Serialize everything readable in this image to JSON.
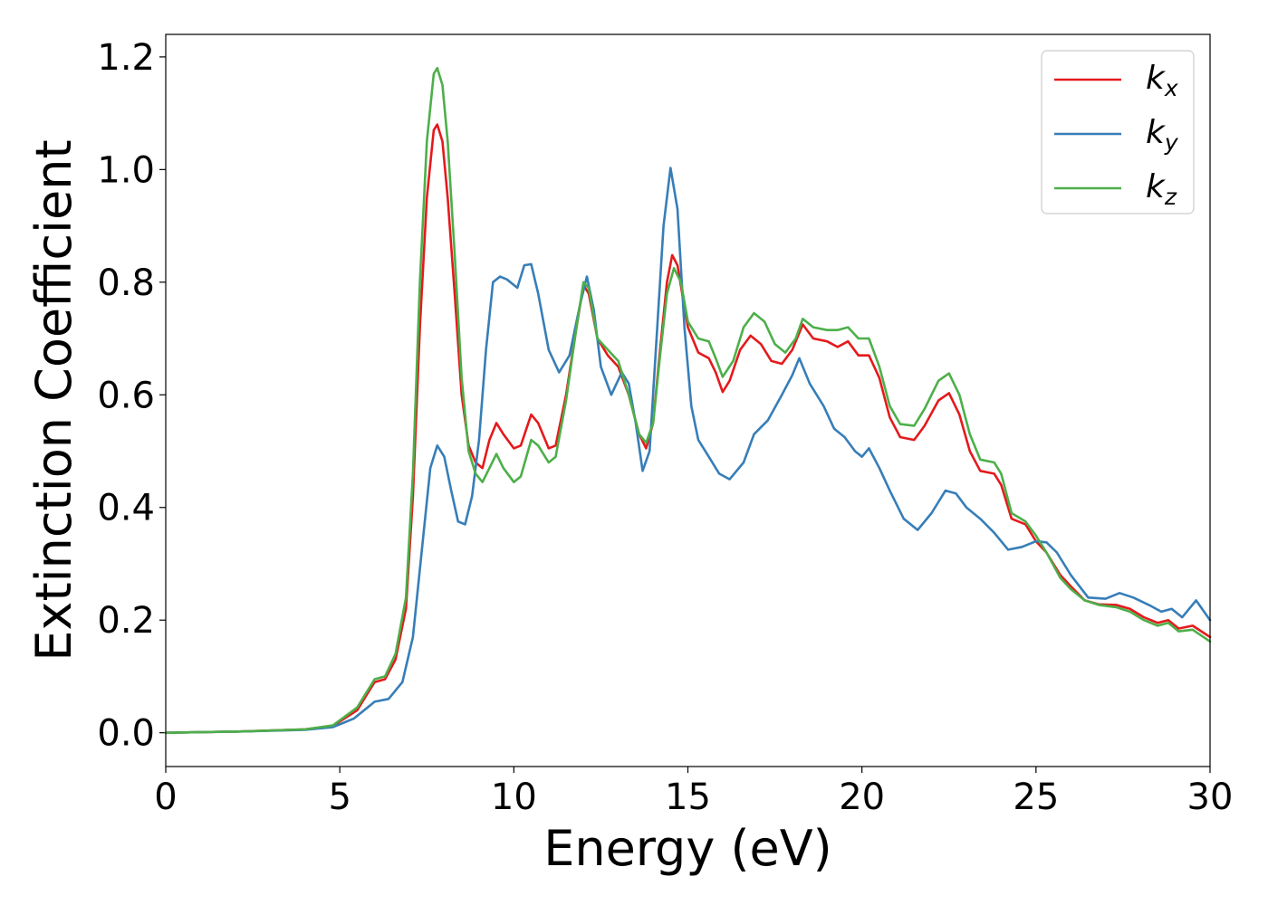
{
  "chart_data": {
    "type": "line",
    "xlabel": "Energy (eV)",
    "ylabel": "Extinction Coefficient",
    "xlim": [
      0,
      30
    ],
    "ylim": [
      -0.06,
      1.24
    ],
    "xticks": [
      0,
      5,
      10,
      15,
      20,
      25,
      30
    ],
    "yticks": [
      0.0,
      0.2,
      0.4,
      0.6,
      0.8,
      1.0,
      1.2
    ],
    "xtick_labels": [
      "0",
      "5",
      "10",
      "15",
      "20",
      "25",
      "30"
    ],
    "ytick_labels": [
      "0.0",
      "0.2",
      "0.4",
      "0.6",
      "0.8",
      "1.0",
      "1.2"
    ],
    "grid": false,
    "legend_position": "top-right",
    "series": [
      {
        "name": "kx",
        "base": "k",
        "sub": "x",
        "color": "#e41a1c",
        "points": [
          [
            0,
            0
          ],
          [
            2,
            0.002
          ],
          [
            4,
            0.006
          ],
          [
            4.8,
            0.012
          ],
          [
            5.5,
            0.04
          ],
          [
            5.8,
            0.07
          ],
          [
            6,
            0.09
          ],
          [
            6.3,
            0.095
          ],
          [
            6.6,
            0.13
          ],
          [
            6.9,
            0.22
          ],
          [
            7.1,
            0.42
          ],
          [
            7.3,
            0.72
          ],
          [
            7.5,
            0.95
          ],
          [
            7.7,
            1.07
          ],
          [
            7.8,
            1.08
          ],
          [
            7.95,
            1.05
          ],
          [
            8.1,
            0.95
          ],
          [
            8.3,
            0.78
          ],
          [
            8.5,
            0.6
          ],
          [
            8.7,
            0.51
          ],
          [
            8.9,
            0.48
          ],
          [
            9.1,
            0.47
          ],
          [
            9.3,
            0.52
          ],
          [
            9.5,
            0.55
          ],
          [
            9.7,
            0.53
          ],
          [
            10,
            0.505
          ],
          [
            10.2,
            0.51
          ],
          [
            10.5,
            0.565
          ],
          [
            10.7,
            0.55
          ],
          [
            11,
            0.505
          ],
          [
            11.2,
            0.51
          ],
          [
            11.5,
            0.6
          ],
          [
            11.8,
            0.72
          ],
          [
            12,
            0.795
          ],
          [
            12.15,
            0.78
          ],
          [
            12.4,
            0.7
          ],
          [
            12.7,
            0.67
          ],
          [
            13,
            0.65
          ],
          [
            13.3,
            0.6
          ],
          [
            13.6,
            0.53
          ],
          [
            13.8,
            0.505
          ],
          [
            14,
            0.55
          ],
          [
            14.2,
            0.68
          ],
          [
            14.4,
            0.8
          ],
          [
            14.55,
            0.848
          ],
          [
            14.7,
            0.83
          ],
          [
            15,
            0.72
          ],
          [
            15.3,
            0.675
          ],
          [
            15.6,
            0.665
          ],
          [
            15.8,
            0.64
          ],
          [
            16,
            0.605
          ],
          [
            16.2,
            0.625
          ],
          [
            16.5,
            0.68
          ],
          [
            16.8,
            0.705
          ],
          [
            17.1,
            0.69
          ],
          [
            17.4,
            0.66
          ],
          [
            17.7,
            0.655
          ],
          [
            18,
            0.68
          ],
          [
            18.3,
            0.725
          ],
          [
            18.6,
            0.7
          ],
          [
            19,
            0.695
          ],
          [
            19.3,
            0.685
          ],
          [
            19.6,
            0.695
          ],
          [
            19.9,
            0.67
          ],
          [
            20.2,
            0.67
          ],
          [
            20.5,
            0.63
          ],
          [
            20.8,
            0.56
          ],
          [
            21.1,
            0.525
          ],
          [
            21.5,
            0.52
          ],
          [
            21.8,
            0.545
          ],
          [
            22.2,
            0.59
          ],
          [
            22.5,
            0.603
          ],
          [
            22.8,
            0.565
          ],
          [
            23.1,
            0.5
          ],
          [
            23.4,
            0.465
          ],
          [
            23.8,
            0.46
          ],
          [
            24,
            0.44
          ],
          [
            24.3,
            0.38
          ],
          [
            24.7,
            0.37
          ],
          [
            25,
            0.34
          ],
          [
            25.3,
            0.32
          ],
          [
            25.7,
            0.28
          ],
          [
            26,
            0.26
          ],
          [
            26.4,
            0.235
          ],
          [
            26.8,
            0.228
          ],
          [
            27.3,
            0.227
          ],
          [
            27.7,
            0.22
          ],
          [
            28.1,
            0.205
          ],
          [
            28.5,
            0.195
          ],
          [
            28.8,
            0.2
          ],
          [
            29.1,
            0.185
          ],
          [
            29.5,
            0.19
          ],
          [
            30,
            0.17
          ]
        ]
      },
      {
        "name": "ky",
        "base": "k",
        "sub": "y",
        "color": "#377eb8",
        "points": [
          [
            0,
            0
          ],
          [
            2,
            0.002
          ],
          [
            4,
            0.005
          ],
          [
            4.8,
            0.01
          ],
          [
            5.4,
            0.025
          ],
          [
            5.8,
            0.045
          ],
          [
            6,
            0.055
          ],
          [
            6.4,
            0.06
          ],
          [
            6.8,
            0.09
          ],
          [
            7.1,
            0.17
          ],
          [
            7.4,
            0.35
          ],
          [
            7.6,
            0.47
          ],
          [
            7.8,
            0.51
          ],
          [
            8,
            0.49
          ],
          [
            8.2,
            0.43
          ],
          [
            8.4,
            0.375
          ],
          [
            8.6,
            0.37
          ],
          [
            8.8,
            0.42
          ],
          [
            9,
            0.52
          ],
          [
            9.2,
            0.68
          ],
          [
            9.4,
            0.8
          ],
          [
            9.6,
            0.81
          ],
          [
            9.8,
            0.805
          ],
          [
            10.1,
            0.79
          ],
          [
            10.3,
            0.83
          ],
          [
            10.5,
            0.832
          ],
          [
            10.7,
            0.78
          ],
          [
            11,
            0.68
          ],
          [
            11.3,
            0.64
          ],
          [
            11.6,
            0.67
          ],
          [
            11.9,
            0.76
          ],
          [
            12.1,
            0.81
          ],
          [
            12.3,
            0.75
          ],
          [
            12.5,
            0.65
          ],
          [
            12.8,
            0.6
          ],
          [
            13.1,
            0.64
          ],
          [
            13.3,
            0.62
          ],
          [
            13.5,
            0.55
          ],
          [
            13.7,
            0.465
          ],
          [
            13.9,
            0.5
          ],
          [
            14.1,
            0.7
          ],
          [
            14.3,
            0.9
          ],
          [
            14.5,
            1.003
          ],
          [
            14.7,
            0.93
          ],
          [
            14.9,
            0.72
          ],
          [
            15.1,
            0.58
          ],
          [
            15.3,
            0.52
          ],
          [
            15.6,
            0.49
          ],
          [
            15.9,
            0.46
          ],
          [
            16.2,
            0.45
          ],
          [
            16.6,
            0.48
          ],
          [
            16.9,
            0.53
          ],
          [
            17.3,
            0.555
          ],
          [
            17.7,
            0.6
          ],
          [
            18,
            0.635
          ],
          [
            18.2,
            0.665
          ],
          [
            18.5,
            0.62
          ],
          [
            18.9,
            0.58
          ],
          [
            19.2,
            0.54
          ],
          [
            19.5,
            0.525
          ],
          [
            19.8,
            0.5
          ],
          [
            20,
            0.49
          ],
          [
            20.2,
            0.505
          ],
          [
            20.5,
            0.47
          ],
          [
            20.8,
            0.43
          ],
          [
            21.2,
            0.38
          ],
          [
            21.6,
            0.36
          ],
          [
            22,
            0.39
          ],
          [
            22.4,
            0.43
          ],
          [
            22.7,
            0.425
          ],
          [
            23,
            0.4
          ],
          [
            23.4,
            0.38
          ],
          [
            23.8,
            0.355
          ],
          [
            24.2,
            0.325
          ],
          [
            24.6,
            0.33
          ],
          [
            25,
            0.34
          ],
          [
            25.3,
            0.338
          ],
          [
            25.6,
            0.32
          ],
          [
            26,
            0.28
          ],
          [
            26.5,
            0.24
          ],
          [
            27,
            0.238
          ],
          [
            27.4,
            0.248
          ],
          [
            27.8,
            0.24
          ],
          [
            28.3,
            0.225
          ],
          [
            28.6,
            0.215
          ],
          [
            28.9,
            0.22
          ],
          [
            29.2,
            0.205
          ],
          [
            29.6,
            0.235
          ],
          [
            30,
            0.2
          ]
        ]
      },
      {
        "name": "kz",
        "base": "k",
        "sub": "z",
        "color": "#4daf4a",
        "points": [
          [
            0,
            0
          ],
          [
            2,
            0.002
          ],
          [
            4,
            0.006
          ],
          [
            4.8,
            0.013
          ],
          [
            5.5,
            0.045
          ],
          [
            5.8,
            0.075
          ],
          [
            6,
            0.095
          ],
          [
            6.3,
            0.1
          ],
          [
            6.6,
            0.14
          ],
          [
            6.9,
            0.24
          ],
          [
            7.1,
            0.46
          ],
          [
            7.3,
            0.8
          ],
          [
            7.5,
            1.05
          ],
          [
            7.7,
            1.17
          ],
          [
            7.8,
            1.18
          ],
          [
            7.95,
            1.15
          ],
          [
            8.1,
            1.05
          ],
          [
            8.3,
            0.85
          ],
          [
            8.5,
            0.63
          ],
          [
            8.7,
            0.5
          ],
          [
            8.9,
            0.46
          ],
          [
            9.1,
            0.445
          ],
          [
            9.3,
            0.47
          ],
          [
            9.5,
            0.495
          ],
          [
            9.7,
            0.47
          ],
          [
            10,
            0.445
          ],
          [
            10.2,
            0.455
          ],
          [
            10.5,
            0.52
          ],
          [
            10.7,
            0.51
          ],
          [
            11,
            0.48
          ],
          [
            11.2,
            0.49
          ],
          [
            11.5,
            0.59
          ],
          [
            11.8,
            0.72
          ],
          [
            12,
            0.8
          ],
          [
            12.15,
            0.79
          ],
          [
            12.4,
            0.7
          ],
          [
            12.7,
            0.68
          ],
          [
            13,
            0.66
          ],
          [
            13.3,
            0.6
          ],
          [
            13.6,
            0.53
          ],
          [
            13.8,
            0.515
          ],
          [
            14,
            0.55
          ],
          [
            14.2,
            0.67
          ],
          [
            14.4,
            0.78
          ],
          [
            14.6,
            0.825
          ],
          [
            14.8,
            0.8
          ],
          [
            15,
            0.73
          ],
          [
            15.3,
            0.7
          ],
          [
            15.6,
            0.695
          ],
          [
            15.8,
            0.665
          ],
          [
            16,
            0.632
          ],
          [
            16.3,
            0.66
          ],
          [
            16.6,
            0.72
          ],
          [
            16.9,
            0.745
          ],
          [
            17.2,
            0.73
          ],
          [
            17.5,
            0.69
          ],
          [
            17.8,
            0.675
          ],
          [
            18.1,
            0.7
          ],
          [
            18.3,
            0.735
          ],
          [
            18.6,
            0.72
          ],
          [
            19,
            0.715
          ],
          [
            19.3,
            0.715
          ],
          [
            19.6,
            0.72
          ],
          [
            19.9,
            0.7
          ],
          [
            20.2,
            0.7
          ],
          [
            20.5,
            0.65
          ],
          [
            20.8,
            0.58
          ],
          [
            21.1,
            0.548
          ],
          [
            21.5,
            0.545
          ],
          [
            21.8,
            0.575
          ],
          [
            22.2,
            0.625
          ],
          [
            22.5,
            0.638
          ],
          [
            22.8,
            0.6
          ],
          [
            23.1,
            0.53
          ],
          [
            23.4,
            0.485
          ],
          [
            23.8,
            0.48
          ],
          [
            24,
            0.46
          ],
          [
            24.3,
            0.39
          ],
          [
            24.7,
            0.375
          ],
          [
            25,
            0.35
          ],
          [
            25.3,
            0.32
          ],
          [
            25.7,
            0.275
          ],
          [
            26,
            0.255
          ],
          [
            26.4,
            0.235
          ],
          [
            26.8,
            0.227
          ],
          [
            27.3,
            0.223
          ],
          [
            27.7,
            0.215
          ],
          [
            28.1,
            0.2
          ],
          [
            28.5,
            0.19
          ],
          [
            28.8,
            0.195
          ],
          [
            29.1,
            0.18
          ],
          [
            29.5,
            0.183
          ],
          [
            30,
            0.162
          ]
        ]
      }
    ]
  }
}
